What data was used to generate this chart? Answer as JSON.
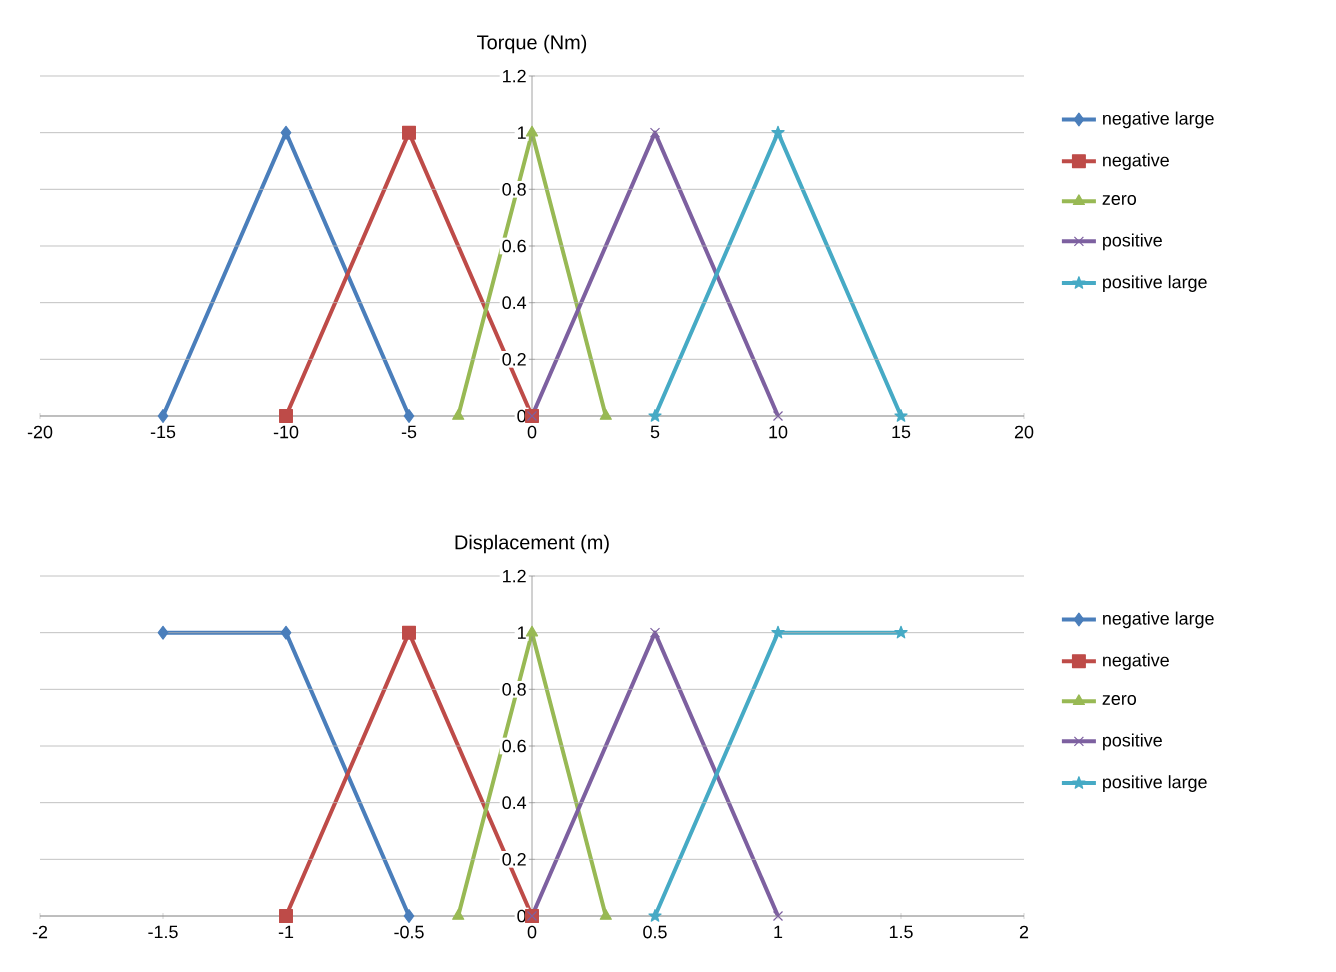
{
  "chart_data": [
    {
      "type": "line",
      "title": "Torque (Nm)",
      "xlim": [
        -20,
        20
      ],
      "xticks": [
        -20,
        -15,
        -10,
        -5,
        0,
        5,
        10,
        15,
        20
      ],
      "ylim": [
        0,
        1.2
      ],
      "yticks": [
        0,
        0.2,
        0.4,
        0.6,
        0.8,
        1,
        1.2
      ],
      "grid": "y",
      "legend": "right",
      "series": [
        {
          "name": "negative large",
          "color": "#4a7ebb",
          "marker": "diamond",
          "x": [
            -15,
            -10,
            -5
          ],
          "values": [
            0,
            1,
            0
          ]
        },
        {
          "name": "negative",
          "color": "#be4b48",
          "marker": "square",
          "x": [
            -10,
            -5,
            0
          ],
          "values": [
            0,
            1,
            0
          ]
        },
        {
          "name": "zero",
          "color": "#98b954",
          "marker": "triangle",
          "x": [
            -3,
            0,
            3
          ],
          "values": [
            0,
            1,
            0
          ]
        },
        {
          "name": "positive",
          "color": "#7d60a0",
          "marker": "cross",
          "x": [
            0,
            5,
            10
          ],
          "values": [
            0,
            1,
            0
          ]
        },
        {
          "name": "positive large",
          "color": "#46aac5",
          "marker": "star",
          "x": [
            5,
            10,
            15
          ],
          "values": [
            0,
            1,
            0
          ]
        }
      ]
    },
    {
      "type": "line",
      "title": "Displacement (m)",
      "xlim": [
        -2,
        2
      ],
      "xticks": [
        -2,
        -1.5,
        -1,
        -0.5,
        0,
        0.5,
        1,
        1.5,
        2
      ],
      "ylim": [
        0,
        1.2
      ],
      "yticks": [
        0,
        0.2,
        0.4,
        0.6,
        0.8,
        1,
        1.2
      ],
      "grid": "y",
      "legend": "right",
      "series": [
        {
          "name": "negative large",
          "color": "#4a7ebb",
          "marker": "diamond",
          "x": [
            -1.5,
            -1,
            -0.5
          ],
          "values": [
            1,
            1,
            0
          ]
        },
        {
          "name": "negative",
          "color": "#be4b48",
          "marker": "square",
          "x": [
            -1,
            -0.5,
            0
          ],
          "values": [
            0,
            1,
            0
          ]
        },
        {
          "name": "zero",
          "color": "#98b954",
          "marker": "triangle",
          "x": [
            -0.3,
            0,
            0.3
          ],
          "values": [
            0,
            1,
            0
          ]
        },
        {
          "name": "positive",
          "color": "#7d60a0",
          "marker": "cross",
          "x": [
            0,
            0.5,
            1
          ],
          "values": [
            0,
            1,
            0
          ]
        },
        {
          "name": "positive large",
          "color": "#46aac5",
          "marker": "star",
          "x": [
            0.5,
            1,
            1.5
          ],
          "values": [
            0,
            1,
            1
          ]
        }
      ]
    }
  ]
}
